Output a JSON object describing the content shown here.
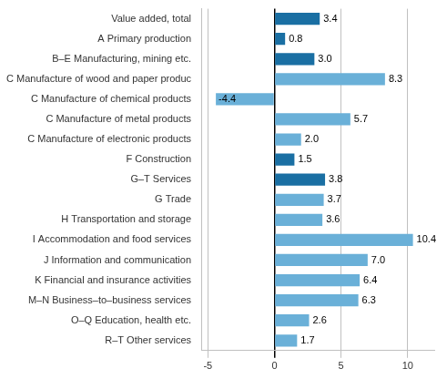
{
  "chart_data": {
    "type": "bar",
    "orientation": "horizontal",
    "categories": [
      "R–T Other services",
      "O–Q Education, health etc.",
      "M–N Business–to–business services",
      "K Financial and insurance activities",
      "J Information and communication",
      "I Accommodation and food services",
      "H Transportation and storage",
      "G Trade",
      "G–T Services",
      "F Construction",
      "C Manufacture of electronic products",
      "C Manufacture of metal products",
      "C Manufacture of chemical products",
      "C Manufacture of wood and paper produc",
      "B–E Manufacturing, mining etc.",
      "A Primary production",
      "Value added, total"
    ],
    "values": [
      1.7,
      2.6,
      6.3,
      6.4,
      7.0,
      10.4,
      3.6,
      3.7,
      3.8,
      1.5,
      2.0,
      5.7,
      -4.4,
      8.3,
      3.0,
      0.8,
      3.4
    ],
    "value_labels": [
      "1.7",
      "2.6",
      "6.3",
      "6.4",
      "7.0",
      "10.4",
      "3.6",
      "3.7",
      "3.8",
      "1.5",
      "2.0",
      "5.7",
      "-4.4",
      "8.3",
      "3.0",
      "0.8",
      "3.4"
    ],
    "colors": [
      "#6ab0d8",
      "#6ab0d8",
      "#6ab0d8",
      "#6ab0d8",
      "#6ab0d8",
      "#6ab0d8",
      "#6ab0d8",
      "#6ab0d8",
      "#1a6fa3",
      "#1a6fa3",
      "#6ab0d8",
      "#6ab0d8",
      "#6ab0d8",
      "#6ab0d8",
      "#1a6fa3",
      "#1a6fa3",
      "#1a6fa3"
    ],
    "xlim": [
      -5.5,
      12.0
    ],
    "xticks": [
      -5,
      0,
      5,
      10
    ],
    "grid": true,
    "data_labels": true
  }
}
